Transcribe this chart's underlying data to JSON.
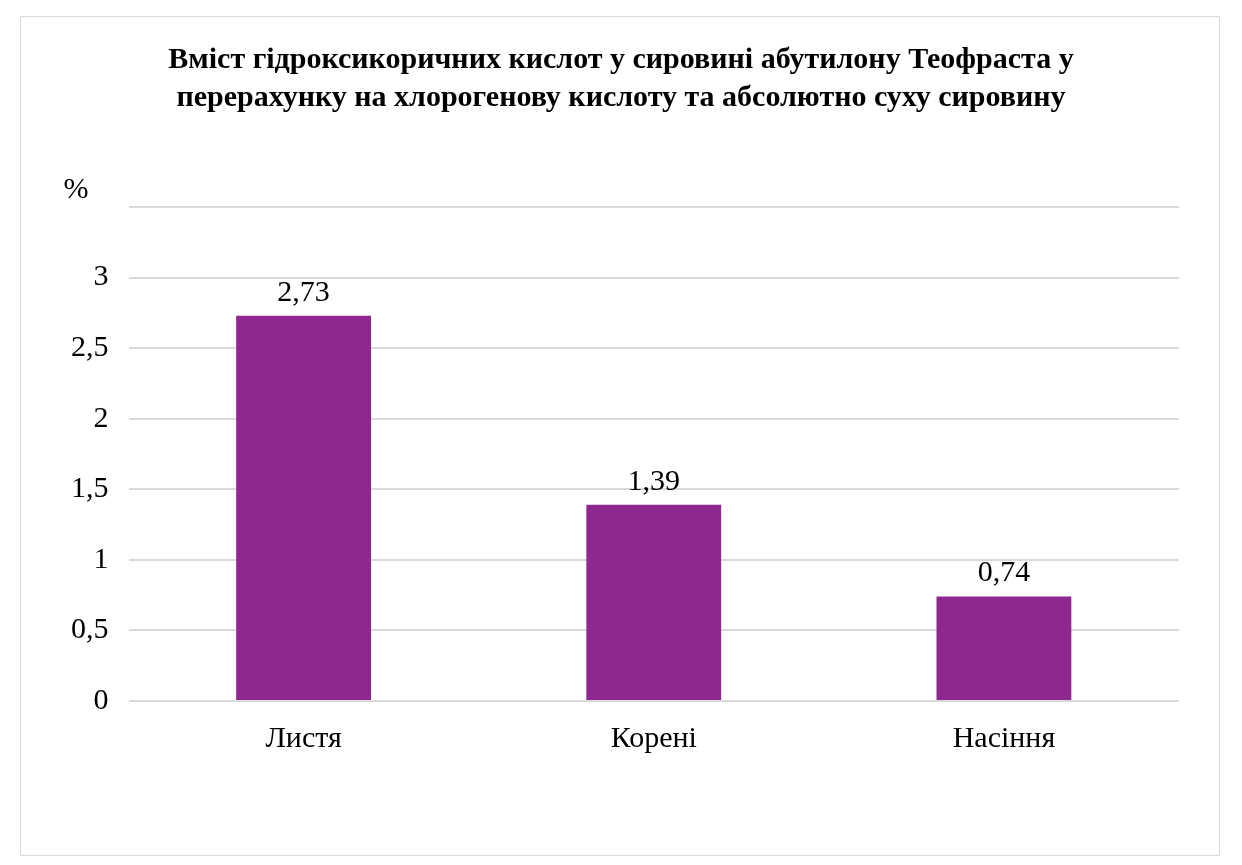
{
  "chart_data": {
    "type": "bar",
    "title": "Вміст гідроксикоричних кислот у сировині абутилону Теофраста у перерахунку на хлорогенову кислоту та абсолютно суху сировину",
    "ylabel": "%",
    "categories": [
      "Листя",
      "Корені",
      "Насіння"
    ],
    "values": [
      2.73,
      1.39,
      0.74
    ],
    "value_labels": [
      "2,73",
      "1,39",
      "0,74"
    ],
    "color": "#8e278f",
    "ylim": [
      0,
      3.5
    ],
    "yticks": [
      {
        "value": 0,
        "label": "0"
      },
      {
        "value": 0.5,
        "label": "0,5"
      },
      {
        "value": 1,
        "label": "1"
      },
      {
        "value": 1.5,
        "label": "1,5"
      },
      {
        "value": 2,
        "label": "2"
      },
      {
        "value": 2.5,
        "label": "2,5"
      },
      {
        "value": 3,
        "label": "3"
      },
      {
        "value": 3.5,
        "label": null
      }
    ],
    "grid": "y",
    "legend": false
  }
}
